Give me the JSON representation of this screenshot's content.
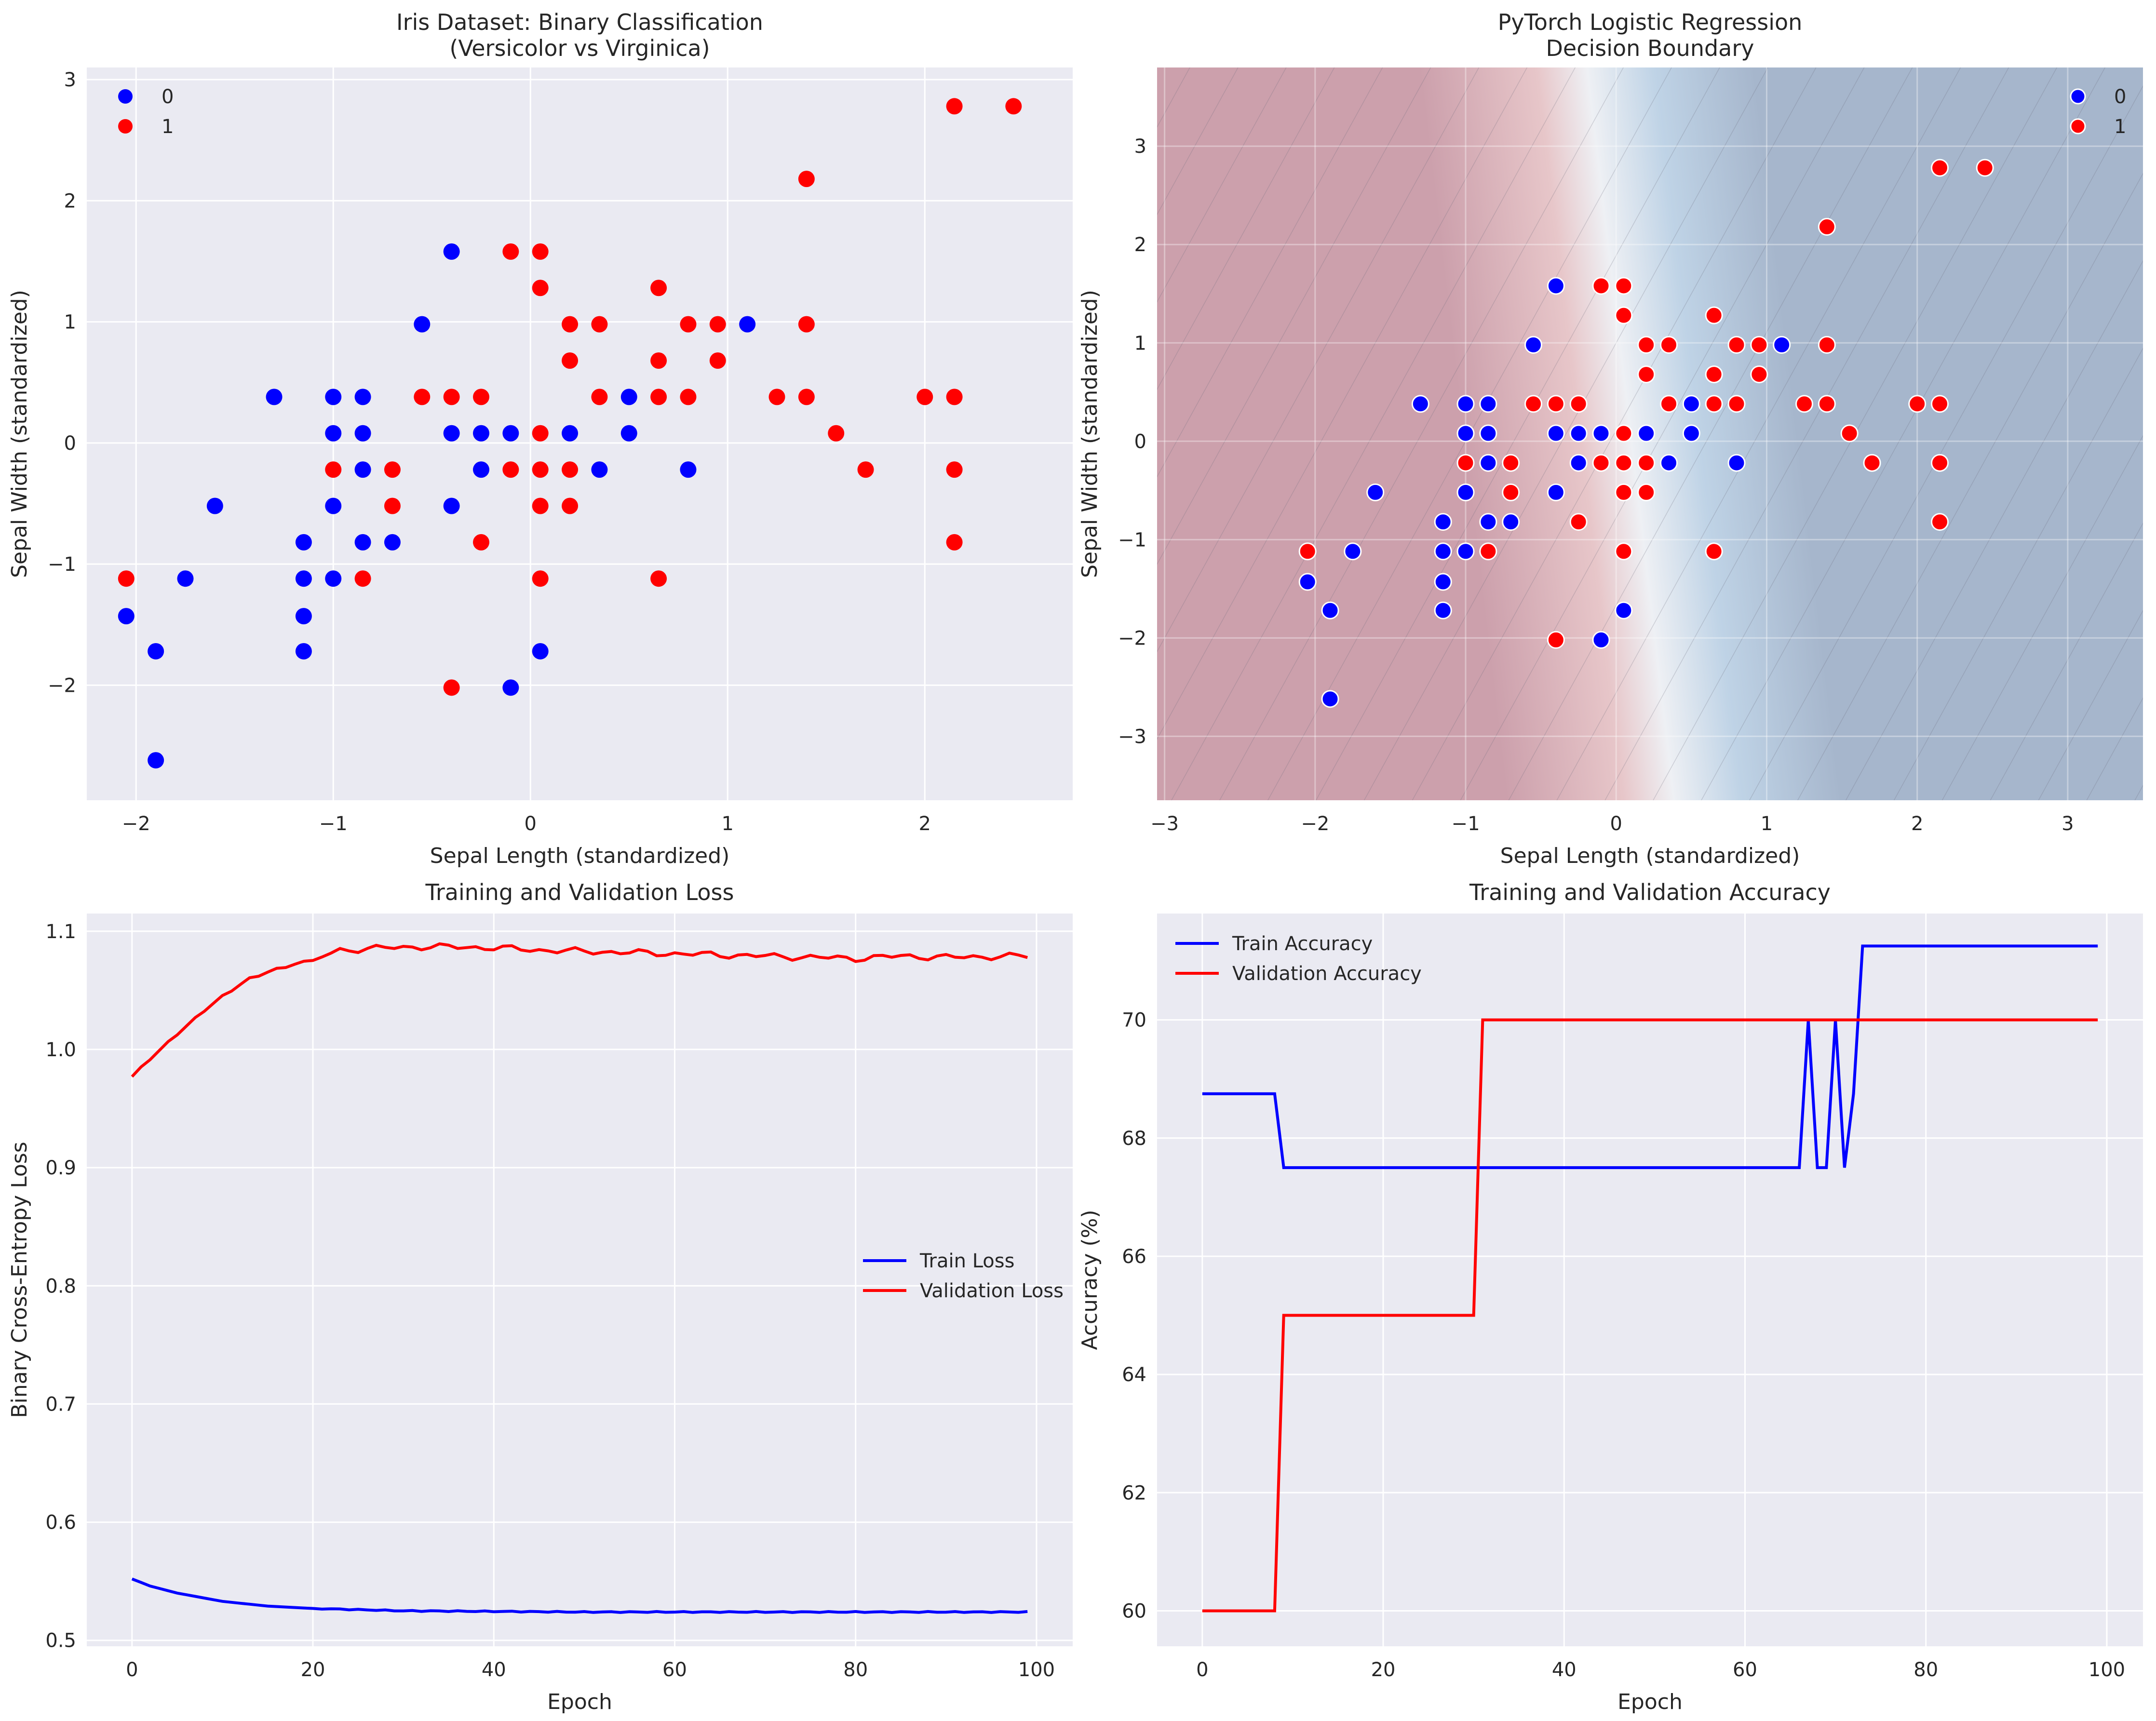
{
  "colors": {
    "axes_bg": "#eaeaf2",
    "grid": "#ffffff",
    "class0": "#0000ff",
    "class1": "#ff0000",
    "boundary_red": "#cc7a8a",
    "boundary_blue": "#7fa8cf"
  },
  "chart_data": [
    {
      "type": "scatter",
      "title": "Iris Dataset: Binary Classification\n(Versicolor vs Virginica)",
      "xlabel": "Sepal Length (standardized)",
      "ylabel": "Sepal Width (standardized)",
      "xlim": [
        -2.25,
        2.75
      ],
      "ylim": [
        -2.95,
        3.1
      ],
      "xticks": [
        -2,
        -1,
        0,
        1,
        2
      ],
      "yticks": [
        -2,
        -1,
        0,
        1,
        2,
        3
      ],
      "xtick_labels": [
        "−2",
        "−1",
        "0",
        "1",
        "2"
      ],
      "ytick_labels": [
        "−2",
        "−1",
        "0",
        "1",
        "2",
        "3"
      ],
      "grid": true,
      "legend_position": "upper-left",
      "series": [
        {
          "name": "0",
          "color": "#0000ff",
          "points": [
            [
              -2.05,
              -1.43
            ],
            [
              -1.9,
              -1.72
            ],
            [
              -1.9,
              -2.62
            ],
            [
              -1.75,
              -1.12
            ],
            [
              -1.6,
              -0.52
            ],
            [
              -1.3,
              0.38
            ],
            [
              -1.15,
              -0.82
            ],
            [
              -1.15,
              -1.12
            ],
            [
              -1.15,
              -1.43
            ],
            [
              -1.15,
              -1.72
            ],
            [
              -1.0,
              0.38
            ],
            [
              -1.0,
              0.08
            ],
            [
              -1.0,
              -0.52
            ],
            [
              -1.0,
              -1.12
            ],
            [
              -0.85,
              0.38
            ],
            [
              -0.85,
              0.08
            ],
            [
              -0.85,
              -0.22
            ],
            [
              -0.85,
              -0.82
            ],
            [
              -0.7,
              -0.82
            ],
            [
              -0.55,
              0.98
            ],
            [
              -0.4,
              1.58
            ],
            [
              -0.4,
              0.08
            ],
            [
              -0.4,
              -0.52
            ],
            [
              -0.25,
              0.08
            ],
            [
              -0.25,
              -0.22
            ],
            [
              -0.1,
              0.08
            ],
            [
              -0.1,
              -2.02
            ],
            [
              0.05,
              -1.72
            ],
            [
              0.2,
              0.08
            ],
            [
              0.35,
              -0.22
            ],
            [
              0.5,
              0.38
            ],
            [
              0.5,
              0.08
            ],
            [
              0.8,
              -0.22
            ],
            [
              1.1,
              0.98
            ]
          ]
        },
        {
          "name": "1",
          "color": "#ff0000",
          "points": [
            [
              -2.05,
              -1.12
            ],
            [
              -1.0,
              -0.22
            ],
            [
              -0.85,
              -1.12
            ],
            [
              -0.7,
              -0.22
            ],
            [
              -0.7,
              -0.52
            ],
            [
              -0.55,
              0.38
            ],
            [
              -0.4,
              0.38
            ],
            [
              -0.4,
              -2.02
            ],
            [
              -0.25,
              0.38
            ],
            [
              -0.25,
              -0.82
            ],
            [
              -0.1,
              1.58
            ],
            [
              -0.1,
              -0.22
            ],
            [
              0.05,
              1.58
            ],
            [
              0.05,
              1.28
            ],
            [
              0.05,
              0.08
            ],
            [
              0.05,
              -0.22
            ],
            [
              0.05,
              -0.52
            ],
            [
              0.05,
              -1.12
            ],
            [
              0.2,
              0.98
            ],
            [
              0.2,
              0.68
            ],
            [
              0.2,
              -0.22
            ],
            [
              0.2,
              -0.52
            ],
            [
              0.35,
              0.98
            ],
            [
              0.35,
              0.38
            ],
            [
              0.65,
              1.28
            ],
            [
              0.65,
              0.68
            ],
            [
              0.65,
              0.38
            ],
            [
              0.65,
              -1.12
            ],
            [
              0.8,
              0.98
            ],
            [
              0.8,
              0.38
            ],
            [
              0.95,
              0.98
            ],
            [
              0.95,
              0.68
            ],
            [
              1.25,
              0.38
            ],
            [
              1.4,
              2.18
            ],
            [
              1.4,
              0.98
            ],
            [
              1.4,
              0.38
            ],
            [
              1.55,
              0.08
            ],
            [
              1.7,
              -0.22
            ],
            [
              2.0,
              0.38
            ],
            [
              2.15,
              2.78
            ],
            [
              2.15,
              0.38
            ],
            [
              2.15,
              -0.22
            ],
            [
              2.15,
              -0.82
            ],
            [
              2.45,
              2.78
            ]
          ]
        }
      ]
    },
    {
      "type": "scatter",
      "title": "PyTorch Logistic Regression\nDecision Boundary",
      "xlabel": "Sepal Length (standardized)",
      "ylabel": "Sepal Width (standardized)",
      "xlim": [
        -3.05,
        3.5
      ],
      "ylim": [
        -3.65,
        3.8
      ],
      "xticks": [
        -3,
        -2,
        -1,
        0,
        1,
        2,
        3
      ],
      "yticks": [
        -3,
        -2,
        -1,
        0,
        1,
        2,
        3
      ],
      "xtick_labels": [
        "−3",
        "−2",
        "−1",
        "0",
        "1",
        "2",
        "3"
      ],
      "ytick_labels": [
        "−3",
        "−2",
        "−1",
        "0",
        "1",
        "2",
        "3"
      ],
      "grid": true,
      "legend_position": "upper-right",
      "background": "decision-boundary-contour (red = class 0 side, blue = class 1 side)",
      "boundary_line": {
        "x_intercept": -0.05,
        "slope_dx_per_dy": -0.18
      },
      "series_ref": "same points as chart 1"
    },
    {
      "type": "line",
      "title": "Training and Validation Loss",
      "xlabel": "Epoch",
      "ylabel": "Binary Cross-Entropy Loss",
      "xlim": [
        -5,
        104
      ],
      "ylim": [
        0.495,
        1.115
      ],
      "xticks": [
        0,
        20,
        40,
        60,
        80,
        100
      ],
      "yticks": [
        0.5,
        0.6,
        0.7,
        0.8,
        0.9,
        1.0,
        1.1
      ],
      "xtick_labels": [
        "0",
        "20",
        "40",
        "60",
        "80",
        "100"
      ],
      "ytick_labels": [
        "0.5",
        "0.6",
        "0.7",
        "0.8",
        "0.9",
        "1.0",
        "1.1"
      ],
      "grid": true,
      "legend_position": "center-right",
      "series": [
        {
          "name": "Train Loss",
          "color": "#0000ff",
          "curve": "train_loss"
        },
        {
          "name": "Validation Loss",
          "color": "#ff0000",
          "curve": "val_loss"
        }
      ],
      "train_loss_keypoints": [
        [
          0,
          0.552
        ],
        [
          2,
          0.546
        ],
        [
          5,
          0.54
        ],
        [
          10,
          0.533
        ],
        [
          15,
          0.529
        ],
        [
          20,
          0.527
        ],
        [
          30,
          0.525
        ],
        [
          50,
          0.524
        ],
        [
          99,
          0.524
        ]
      ],
      "val_loss_keypoints": [
        [
          0,
          0.977
        ],
        [
          2,
          0.992
        ],
        [
          5,
          1.013
        ],
        [
          8,
          1.033
        ],
        [
          10,
          1.045
        ],
        [
          13,
          1.06
        ],
        [
          16,
          1.068
        ],
        [
          20,
          1.076
        ],
        [
          23,
          1.084
        ],
        [
          28,
          1.086
        ],
        [
          33,
          1.087
        ],
        [
          40,
          1.086
        ],
        [
          45,
          1.084
        ],
        [
          50,
          1.083
        ],
        [
          55,
          1.082
        ],
        [
          60,
          1.081
        ],
        [
          70,
          1.079
        ],
        [
          80,
          1.077
        ],
        [
          85,
          1.079
        ],
        [
          90,
          1.078
        ],
        [
          99,
          1.079
        ]
      ]
    },
    {
      "type": "line",
      "title": "Training and Validation Accuracy",
      "xlabel": "Epoch",
      "ylabel": "Accuracy (%)",
      "xlim": [
        -5,
        104
      ],
      "ylim": [
        59.4,
        71.8
      ],
      "xticks": [
        0,
        20,
        40,
        60,
        80,
        100
      ],
      "yticks": [
        60,
        62,
        64,
        66,
        68,
        70
      ],
      "xtick_labels": [
        "0",
        "20",
        "40",
        "60",
        "80",
        "100"
      ],
      "ytick_labels": [
        "60",
        "62",
        "64",
        "66",
        "68",
        "70"
      ],
      "grid": true,
      "legend_position": "upper-left",
      "series": [
        {
          "name": "Train Accuracy",
          "color": "#0000ff",
          "points": [
            [
              0,
              68.75
            ],
            [
              8,
              68.75
            ],
            [
              9,
              67.5
            ],
            [
              66,
              67.5
            ],
            [
              67,
              70.0
            ],
            [
              68,
              67.5
            ],
            [
              69,
              67.5
            ],
            [
              70,
              70.0
            ],
            [
              71,
              67.5
            ],
            [
              72,
              68.75
            ],
            [
              73,
              71.25
            ],
            [
              99,
              71.25
            ]
          ]
        },
        {
          "name": "Validation Accuracy",
          "color": "#ff0000",
          "points": [
            [
              0,
              60.0
            ],
            [
              8,
              60.0
            ],
            [
              9,
              65.0
            ],
            [
              30,
              65.0
            ],
            [
              31,
              70.0
            ],
            [
              99,
              70.0
            ]
          ]
        }
      ]
    }
  ]
}
